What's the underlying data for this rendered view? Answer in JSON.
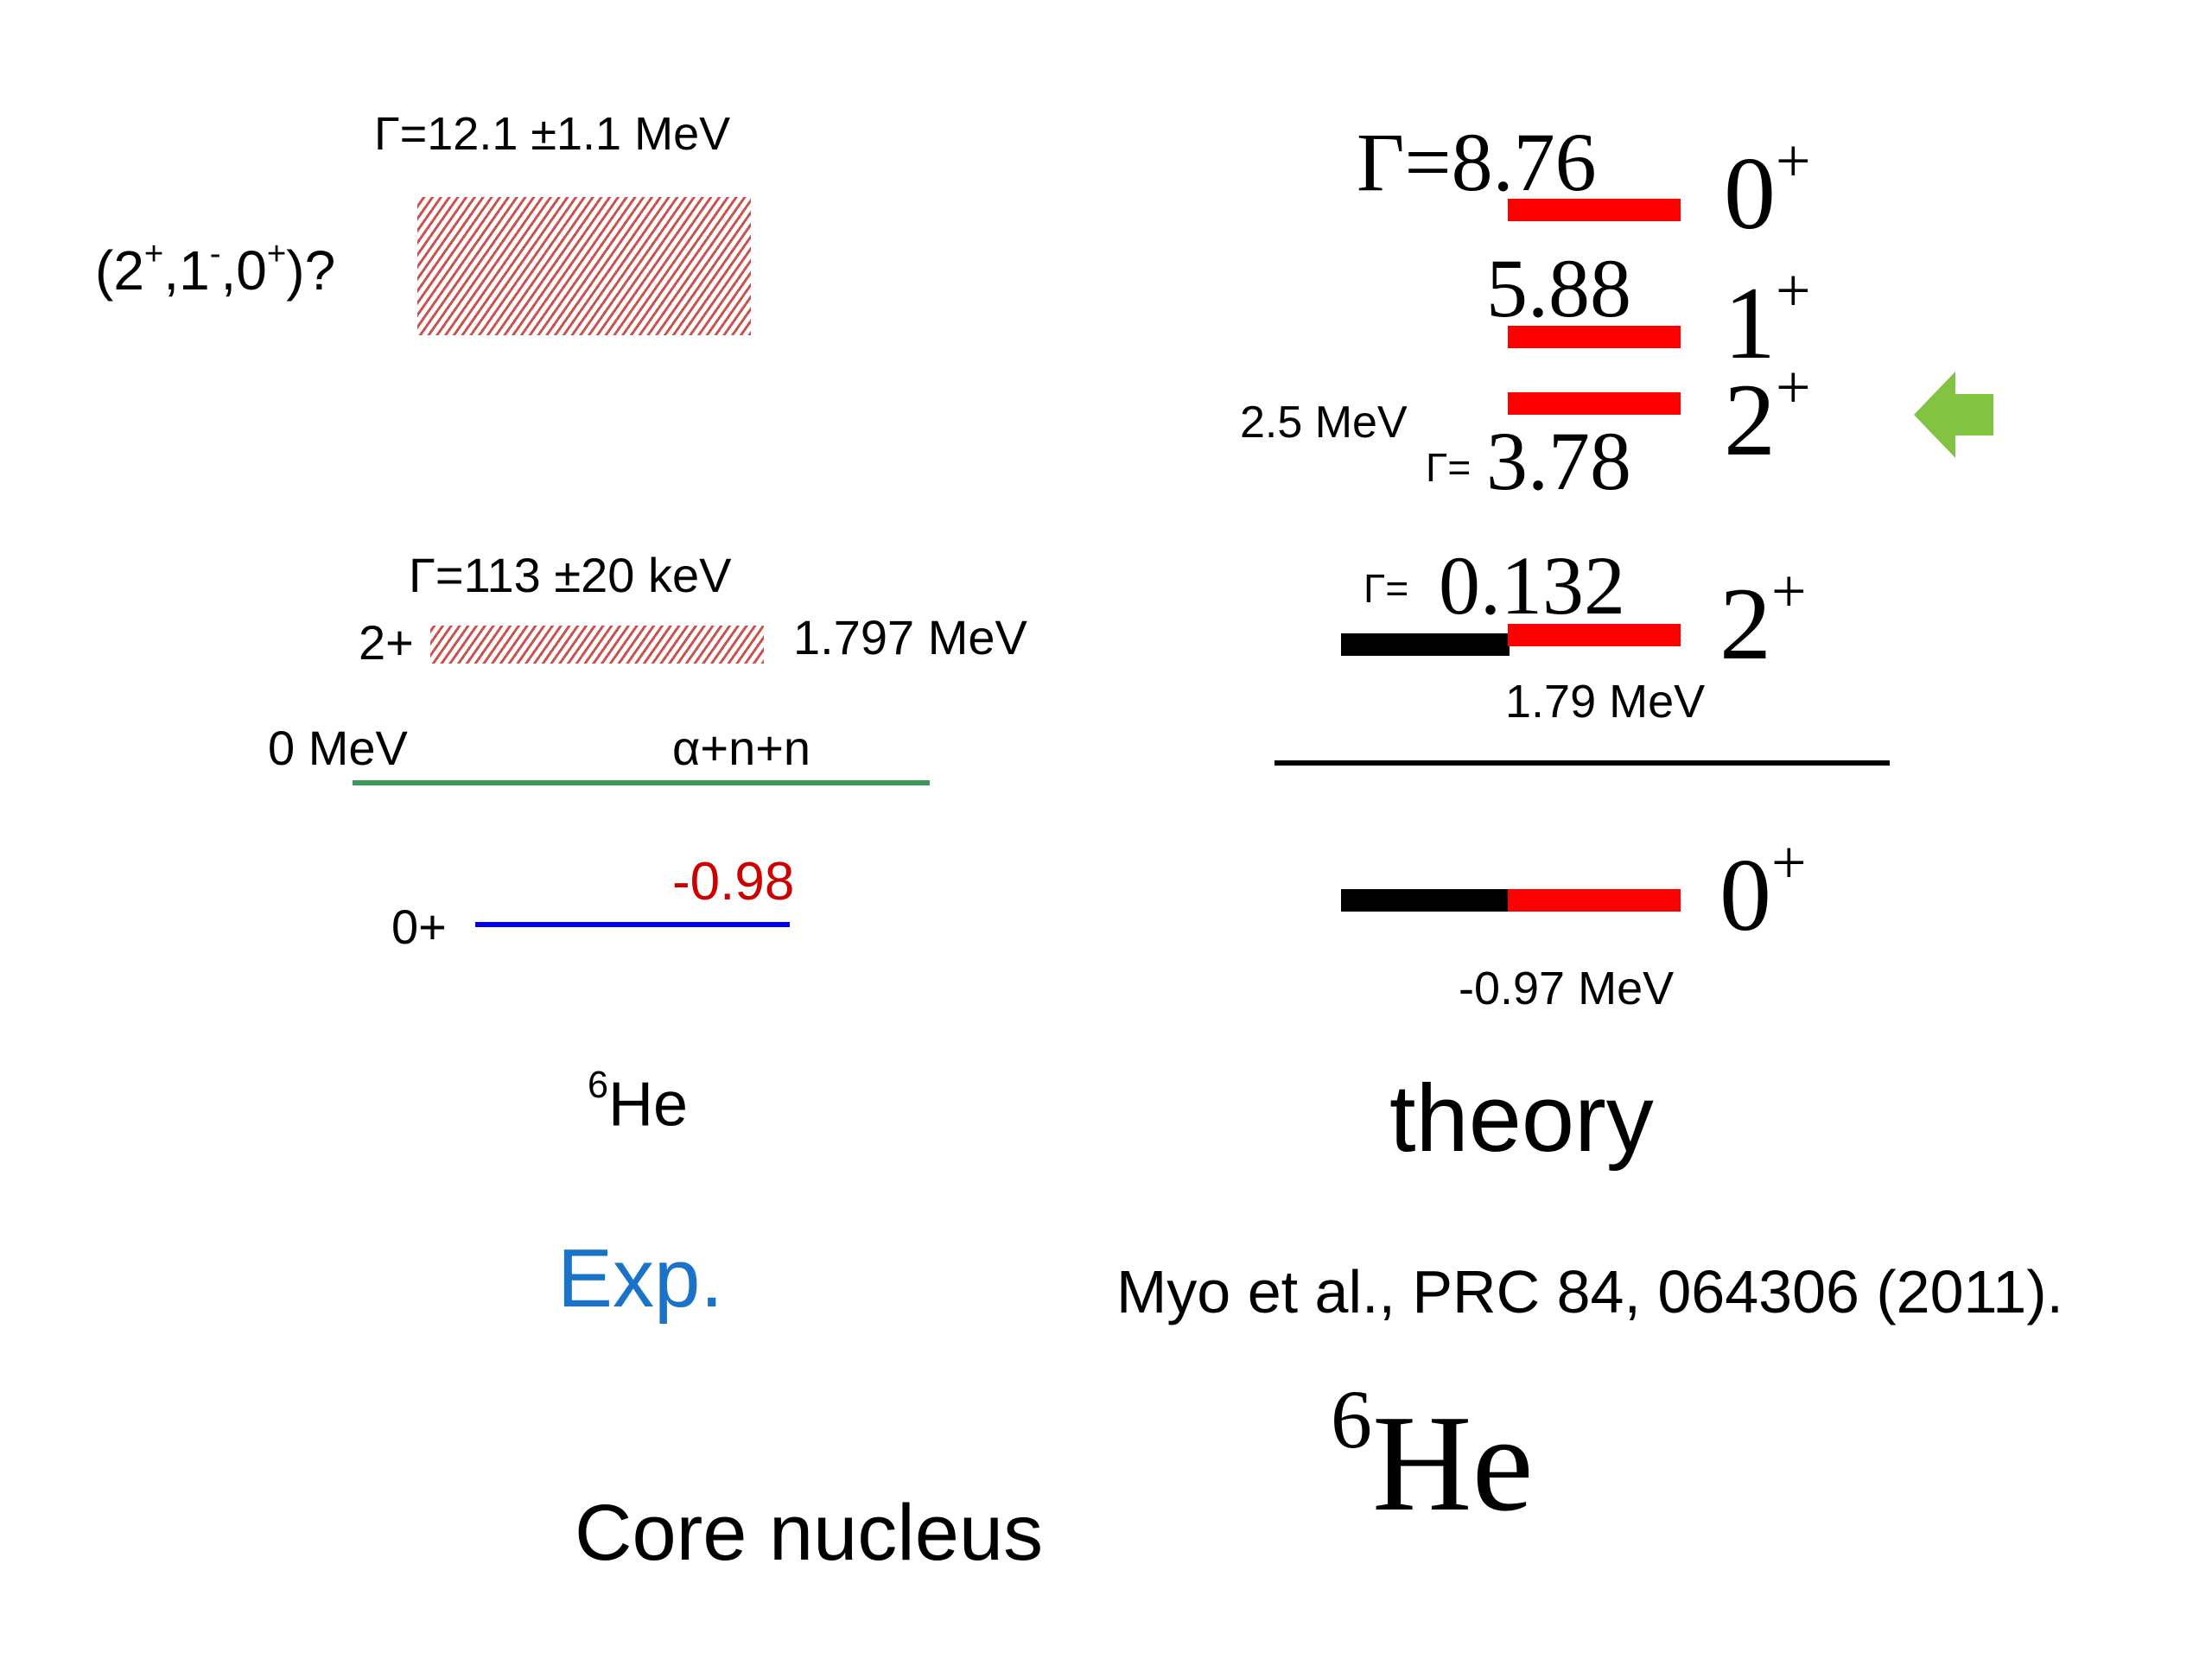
{
  "exp": {
    "upper_width_label": "Γ=12.1 ±1.1 MeV",
    "upper_state_label": {
      "open": "(2",
      "p1": "+",
      "c1": ",1",
      "p2": "-",
      "c2": ",0",
      "p3": "+",
      "close": ")?"
    },
    "first_width_label": "Γ=113 ±20 keV",
    "first_state_spin": "2+",
    "first_state_energy": "1.797 MeV",
    "threshold_energy": "0 MeV",
    "threshold_channel": "α+n+n",
    "ground_energy": "-0.98",
    "ground_spin": "0+",
    "nucleus_mass": "6",
    "nucleus_symbol": "He",
    "column_label": "Exp."
  },
  "theory": {
    "levels": [
      {
        "value_prefix": "Γ=",
        "value": "8.76",
        "spin": "0",
        "parity": "+"
      },
      {
        "value": "5.88",
        "spin": "1",
        "parity": "+"
      },
      {
        "value_prefix": "Γ=",
        "value": "3.78",
        "width_mev": "2.5 MeV",
        "spin": "2",
        "parity": "+"
      },
      {
        "value_prefix": "Γ=",
        "value": "0.132",
        "energy": "1.79 MeV",
        "spin": "2",
        "parity": "+"
      },
      {
        "energy": "-0.97 MeV",
        "spin": "0",
        "parity": "+"
      }
    ],
    "column_label": "theory",
    "reference": "Myo et al., PRC 84, 064306 (2011).",
    "nucleus_mass": "6",
    "nucleus_symbol": "He"
  },
  "caption": "Core nucleus",
  "colors": {
    "theory_level": "#ff0000",
    "theory_bound_part": "#000000",
    "hatch": "#c8544f",
    "threshold_line": "#3a9a5b",
    "ground_line": "#0000ee",
    "ground_energy_text": "#cc0000",
    "exp_label": "#1a73c8",
    "arrow": "#82c341"
  },
  "icons": {
    "pointer": "left-arrow-icon"
  }
}
